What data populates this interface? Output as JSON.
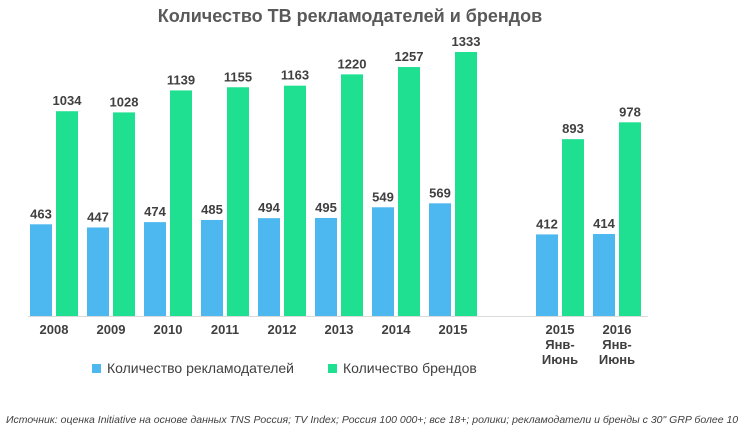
{
  "colors": {
    "advertisers": "#4DB8F0",
    "brands": "#1FDF90",
    "axis": "#D9D9D9",
    "text": "#404040"
  },
  "chart_data": {
    "type": "bar",
    "title": "Количество ТВ рекламодателей и брендов",
    "categories": [
      [
        "2008"
      ],
      [
        "2009"
      ],
      [
        "2010"
      ],
      [
        "2011"
      ],
      [
        "2012"
      ],
      [
        "2013"
      ],
      [
        "2014"
      ],
      [
        "2015"
      ],
      [
        "2015",
        "Янв-",
        "Июнь"
      ],
      [
        "2016",
        "Янв-",
        "Июнь"
      ]
    ],
    "series": [
      {
        "name": "Количество рекламодателей",
        "values": [
          463,
          447,
          474,
          485,
          494,
          495,
          549,
          569,
          412,
          414
        ]
      },
      {
        "name": "Количество брендов",
        "values": [
          1034,
          1028,
          1139,
          1155,
          1163,
          1220,
          1257,
          1333,
          893,
          978
        ]
      }
    ],
    "ylim": [
      0,
      1333
    ],
    "grid": false,
    "legend": "bottom"
  },
  "source_note": "Источник: оценка Initiative на основе данных TNS Россия; TV Index; Россия 100 000+; все 18+; ролики; рекламодатели и бренды с 30\" GRP более 10"
}
